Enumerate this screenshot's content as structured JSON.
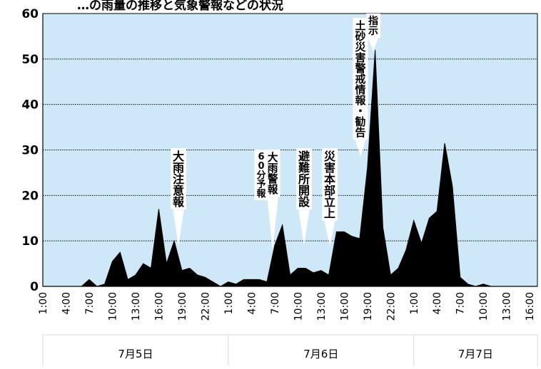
{
  "header_partial": "…の雨量の推移と気象警報などの状況",
  "chart_data": {
    "type": "area",
    "color": "#000000",
    "plot_background": "#cfe8f7",
    "grid": true,
    "ylim": [
      0,
      60
    ],
    "y_ticks": [
      "0",
      "10",
      "20",
      "30",
      "40",
      "50",
      "60"
    ],
    "x_ticks": [
      "1:00",
      "4:00",
      "7:00",
      "10:00",
      "13:00",
      "16:00",
      "19:00",
      "22:00",
      "1:00",
      "4:00",
      "7:00",
      "10:00",
      "13:00",
      "16:00",
      "19:00",
      "22:00",
      "1:00",
      "4:00",
      "7:00",
      "10:00",
      "13:00",
      "16:00"
    ],
    "date_groups": [
      {
        "label": "7月5日",
        "start_hour": 0,
        "end_hour": 24
      },
      {
        "label": "7月6日",
        "start_hour": 24,
        "end_hour": 48
      },
      {
        "label": "7月7日",
        "start_hour": 48,
        "end_hour": 64
      }
    ],
    "series": [
      {
        "hours": [
          0,
          1,
          2,
          3,
          4,
          5,
          6,
          7,
          8,
          9,
          10,
          11,
          12,
          13,
          14,
          15,
          16,
          17,
          18,
          19,
          20,
          21,
          22,
          23,
          24,
          25,
          26,
          27,
          28,
          29,
          30,
          31,
          32,
          33,
          34,
          35,
          36,
          37,
          38,
          39,
          40,
          41,
          42,
          43,
          44,
          45,
          46,
          47,
          48,
          49,
          50,
          51,
          52,
          53,
          54,
          55,
          56,
          57,
          58,
          59,
          60,
          61,
          62,
          63,
          64
        ],
        "values": [
          0,
          0,
          0,
          0,
          0,
          0,
          1.5,
          0,
          0.5,
          5.5,
          7.5,
          1.5,
          2.5,
          5,
          4,
          17,
          5,
          10,
          3.5,
          4,
          2.5,
          2,
          1,
          0,
          1,
          0.5,
          1.5,
          1.5,
          1.5,
          1,
          9,
          13.5,
          2.5,
          4,
          4,
          3,
          3.5,
          2.5,
          12,
          12,
          11,
          10.5,
          26,
          52,
          13,
          2.5,
          4,
          8,
          14.5,
          9.5,
          15,
          16.5,
          31.5,
          22,
          2,
          0.5,
          0,
          0.5,
          0,
          0,
          0,
          0,
          0,
          0,
          0
        ]
      }
    ],
    "annotations": [
      {
        "text": "大雨注意報",
        "hour": 17.5
      },
      {
        "text": "大雨警報",
        "hour": 30
      },
      {
        "text": "60分予報",
        "hour": 30
      },
      {
        "text": "避難所開設",
        "hour": 33.5
      },
      {
        "text": "災害本部立上",
        "hour": 36.5
      },
      {
        "text": "土砂災害警戒情報・勧告",
        "hour": 41
      },
      {
        "text": "指示",
        "hour": 42.5
      }
    ]
  }
}
